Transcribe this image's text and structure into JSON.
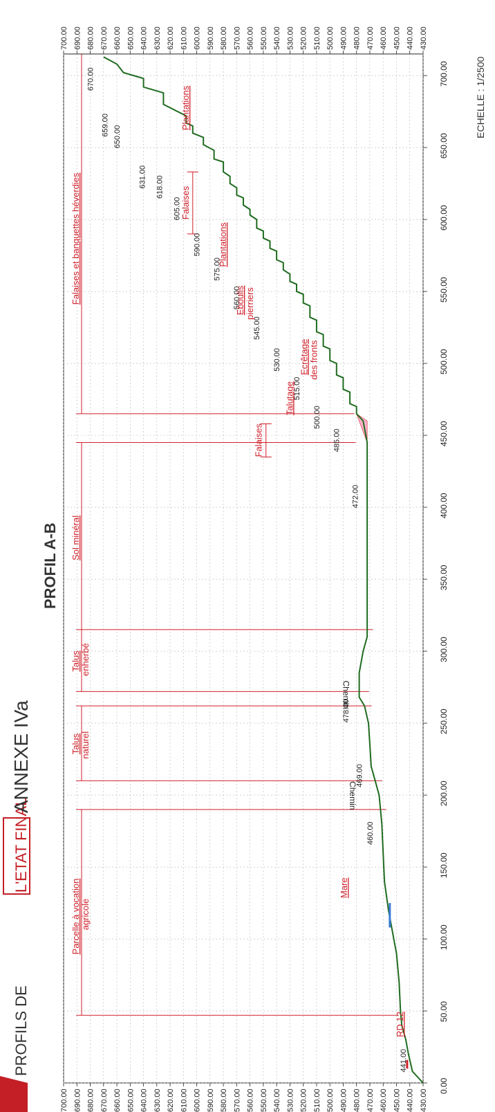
{
  "header": {
    "title_prefix": "PROFILS DE",
    "title_highlight": "L'ETAT FINAL",
    "annex": "ANNEXE IVa",
    "profile_name": "PROFIL A-B",
    "scale": "ECHELLE : 1/2500"
  },
  "colors": {
    "ground": "#1f6b1f",
    "accent": "#d01f2a",
    "grid": "#b8b8b8",
    "axis": "#222222",
    "water": "#3a7bd5",
    "talus_fill": "#ff9fc2"
  },
  "chart_data": {
    "type": "line",
    "xlim": [
      0,
      715
    ],
    "ylim": [
      430,
      700
    ],
    "x_ticks": [
      "0.00",
      "50.00",
      "100.00",
      "150.00",
      "200.00",
      "250.00",
      "300.00",
      "350.00",
      "400.00",
      "450.00",
      "500.00",
      "550.00",
      "600.00",
      "650.00",
      "700.00"
    ],
    "y_ticks": [
      "430.00",
      "440.00",
      "450.00",
      "460.00",
      "470.00",
      "480.00",
      "490.00",
      "500.00",
      "510.00",
      "520.00",
      "530.00",
      "540.00",
      "550.00",
      "560.00",
      "570.00",
      "580.00",
      "590.00",
      "600.00",
      "610.00",
      "620.00",
      "630.00",
      "640.00",
      "650.00",
      "660.00",
      "670.00",
      "680.00",
      "690.00",
      "700.00"
    ],
    "profile": [
      [
        0,
        430
      ],
      [
        8,
        438
      ],
      [
        20,
        441
      ],
      [
        30,
        443
      ],
      [
        40,
        446
      ],
      [
        50,
        447
      ],
      [
        70,
        448
      ],
      [
        90,
        450
      ],
      [
        100,
        452
      ],
      [
        110,
        454
      ],
      [
        120,
        456
      ],
      [
        140,
        459
      ],
      [
        160,
        460
      ],
      [
        180,
        461
      ],
      [
        200,
        463
      ],
      [
        210,
        466
      ],
      [
        220,
        469
      ],
      [
        235,
        470
      ],
      [
        250,
        471
      ],
      [
        262,
        474
      ],
      [
        268,
        478
      ],
      [
        285,
        478
      ],
      [
        300,
        475
      ],
      [
        310,
        472
      ],
      [
        320,
        472
      ],
      [
        350,
        472
      ],
      [
        400,
        472
      ],
      [
        445,
        472
      ],
      [
        460,
        475
      ],
      [
        465,
        480
      ],
      [
        470,
        480
      ],
      [
        472,
        485
      ],
      [
        480,
        485
      ],
      [
        482,
        490
      ],
      [
        490,
        490
      ],
      [
        492,
        495
      ],
      [
        500,
        495
      ],
      [
        502,
        500
      ],
      [
        510,
        500
      ],
      [
        512,
        505
      ],
      [
        520,
        505
      ],
      [
        522,
        510
      ],
      [
        530,
        510
      ],
      [
        532,
        515
      ],
      [
        540,
        515
      ],
      [
        542,
        520
      ],
      [
        548,
        520
      ],
      [
        550,
        525
      ],
      [
        555,
        525
      ],
      [
        557,
        530
      ],
      [
        562,
        530
      ],
      [
        565,
        535
      ],
      [
        570,
        535
      ],
      [
        572,
        540
      ],
      [
        578,
        540
      ],
      [
        580,
        545
      ],
      [
        585,
        545
      ],
      [
        587,
        550
      ],
      [
        592,
        550
      ],
      [
        594,
        555
      ],
      [
        600,
        555
      ],
      [
        603,
        560
      ],
      [
        607,
        560
      ],
      [
        610,
        565
      ],
      [
        615,
        565
      ],
      [
        617,
        570
      ],
      [
        622,
        570
      ],
      [
        625,
        575
      ],
      [
        630,
        575
      ],
      [
        633,
        580
      ],
      [
        640,
        580
      ],
      [
        642,
        587
      ],
      [
        648,
        587
      ],
      [
        652,
        595
      ],
      [
        657,
        595
      ],
      [
        660,
        603
      ],
      [
        665,
        603
      ],
      [
        667,
        608
      ],
      [
        672,
        608
      ],
      [
        680,
        625
      ],
      [
        688,
        625
      ],
      [
        692,
        640
      ],
      [
        698,
        640
      ],
      [
        702,
        655
      ],
      [
        708,
        660
      ],
      [
        713,
        670
      ]
    ],
    "elevation_labels": [
      {
        "text": "441.00",
        "x": 18,
        "y": 443
      },
      {
        "text": "460.00",
        "x": 176,
        "y": 468
      },
      {
        "text": "469.00",
        "x": 216,
        "y": 476
      },
      {
        "text": "478.00",
        "x": 261,
        "y": 486
      },
      {
        "text": "472.00",
        "x": 410,
        "y": 479
      },
      {
        "text": "485.00",
        "x": 449,
        "y": 493
      },
      {
        "text": "500.00",
        "x": 465,
        "y": 508
      },
      {
        "text": "515.00",
        "x": 485,
        "y": 523
      },
      {
        "text": "530.00",
        "x": 505,
        "y": 538
      },
      {
        "text": "545.00",
        "x": 527,
        "y": 553
      },
      {
        "text": "560.00",
        "x": 548,
        "y": 568
      },
      {
        "text": "575.00",
        "x": 568,
        "y": 583
      },
      {
        "text": "590.00",
        "x": 585,
        "y": 598
      },
      {
        "text": "605.00",
        "x": 610,
        "y": 613
      },
      {
        "text": "618.00",
        "x": 625,
        "y": 626
      },
      {
        "text": "631.00",
        "x": 632,
        "y": 639
      },
      {
        "text": "650.00",
        "x": 660,
        "y": 658
      },
      {
        "text": "659.00",
        "x": 668,
        "y": 667
      },
      {
        "text": "670.00",
        "x": 700,
        "y": 678
      }
    ],
    "zones": [
      {
        "text": "Parcelle à vocation",
        "text2": "agricole",
        "x1": 47,
        "x2": 190
      },
      {
        "text": "Talus",
        "text2": "naturel",
        "x1": 210,
        "x2": 262
      },
      {
        "text": "Talus",
        "text2": "enherbé",
        "x1": 272,
        "x2": 315
      },
      {
        "text": "Sol minéral",
        "text2": "",
        "x1": 315,
        "x2": 445
      },
      {
        "text": "Falaises et banquettes héverdies",
        "text2": "",
        "x1": 465,
        "x2": 715
      }
    ],
    "zone_lines": [
      {
        "x": 47,
        "y_bottom": 458
      },
      {
        "x": 190,
        "y_bottom": 467
      },
      {
        "x": 210,
        "y_bottom": 470
      },
      {
        "x": 262,
        "y_bottom": 478
      },
      {
        "x": 272,
        "y_bottom": 480
      },
      {
        "x": 315,
        "y_bottom": 477
      },
      {
        "x": 445,
        "y_bottom": 490
      },
      {
        "x": 465,
        "y_bottom": 491
      }
    ],
    "chemin_labels": [
      {
        "text": "Chemin",
        "x": 200,
        "y": 485
      },
      {
        "text": "Chemin",
        "x": 270,
        "y": 490
      }
    ],
    "annotations": [
      {
        "text": "Mare",
        "x": 135,
        "y": 487
      },
      {
        "text": "RD 12",
        "x": 40,
        "y": 445
      },
      {
        "text": "Ecrêtage",
        "text2": "des fronts",
        "x": 505,
        "y": 517
      },
      {
        "text": "Talutage",
        "x": 477,
        "y": 528
      },
      {
        "text": "Eboulis",
        "text2": "pierriers",
        "x": 545,
        "y": 565
      },
      {
        "text": "Plantations",
        "x": 585,
        "y": 578
      },
      {
        "text": "Plantations",
        "x": 680,
        "y": 606
      }
    ],
    "falaises_brackets": [
      {
        "text": "Falaises",
        "x1": 435,
        "x2": 458,
        "y": 548
      },
      {
        "text": "Falaises",
        "x1": 590,
        "x2": 633,
        "y": 603
      }
    ]
  }
}
